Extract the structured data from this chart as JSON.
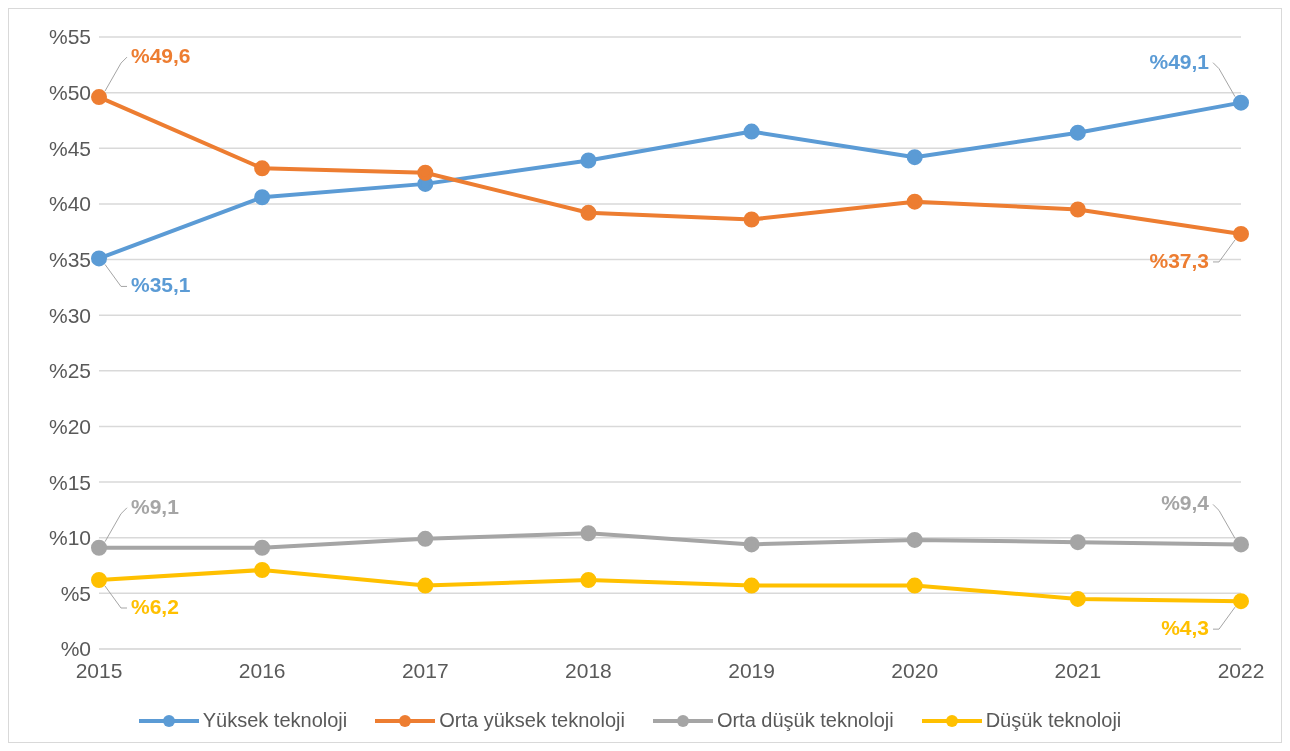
{
  "chart_data": {
    "type": "line",
    "categories": [
      "2015",
      "2016",
      "2017",
      "2018",
      "2019",
      "2020",
      "2021",
      "2022"
    ],
    "series": [
      {
        "name": "Yüksek teknoloji",
        "color": "#5b9bd5",
        "values": [
          35.1,
          40.6,
          41.8,
          43.9,
          46.5,
          44.2,
          46.4,
          49.1
        ],
        "value_labels": [
          "%35,1",
          null,
          null,
          null,
          null,
          null,
          null,
          "%49,1"
        ]
      },
      {
        "name": "Orta yüksek teknoloji",
        "color": "#ed7d31",
        "values": [
          49.6,
          43.2,
          42.8,
          39.2,
          38.6,
          40.2,
          39.5,
          37.3
        ],
        "value_labels": [
          "%49,6",
          null,
          null,
          null,
          null,
          null,
          null,
          "%37,3"
        ]
      },
      {
        "name": "Orta düşük teknoloji",
        "color": "#a5a5a5",
        "values": [
          9.1,
          9.1,
          9.9,
          10.4,
          9.4,
          9.8,
          9.6,
          9.4
        ],
        "value_labels": [
          "%9,1",
          null,
          null,
          null,
          null,
          null,
          null,
          "%9,4"
        ]
      },
      {
        "name": "Düşük teknoloji",
        "color": "#ffc000",
        "values": [
          6.2,
          7.1,
          5.7,
          6.2,
          5.7,
          5.7,
          4.5,
          4.3
        ],
        "value_labels": [
          "%6,2",
          null,
          null,
          null,
          null,
          null,
          null,
          "%4,3"
        ]
      }
    ],
    "ylim": [
      0,
      55
    ],
    "yticks": [
      {
        "value": 0,
        "label": "%0"
      },
      {
        "value": 5,
        "label": "%5"
      },
      {
        "value": 10,
        "label": "%10"
      },
      {
        "value": 15,
        "label": "%15"
      },
      {
        "value": 20,
        "label": "%20"
      },
      {
        "value": 25,
        "label": "%25"
      },
      {
        "value": 30,
        "label": "%30"
      },
      {
        "value": 35,
        "label": "%35"
      },
      {
        "value": 40,
        "label": "%40"
      },
      {
        "value": 45,
        "label": "%45"
      },
      {
        "value": 50,
        "label": "%50"
      },
      {
        "value": 55,
        "label": "%55"
      }
    ],
    "grid": "y",
    "legend": "bottom",
    "marker": "circle",
    "line_style": "solid"
  }
}
